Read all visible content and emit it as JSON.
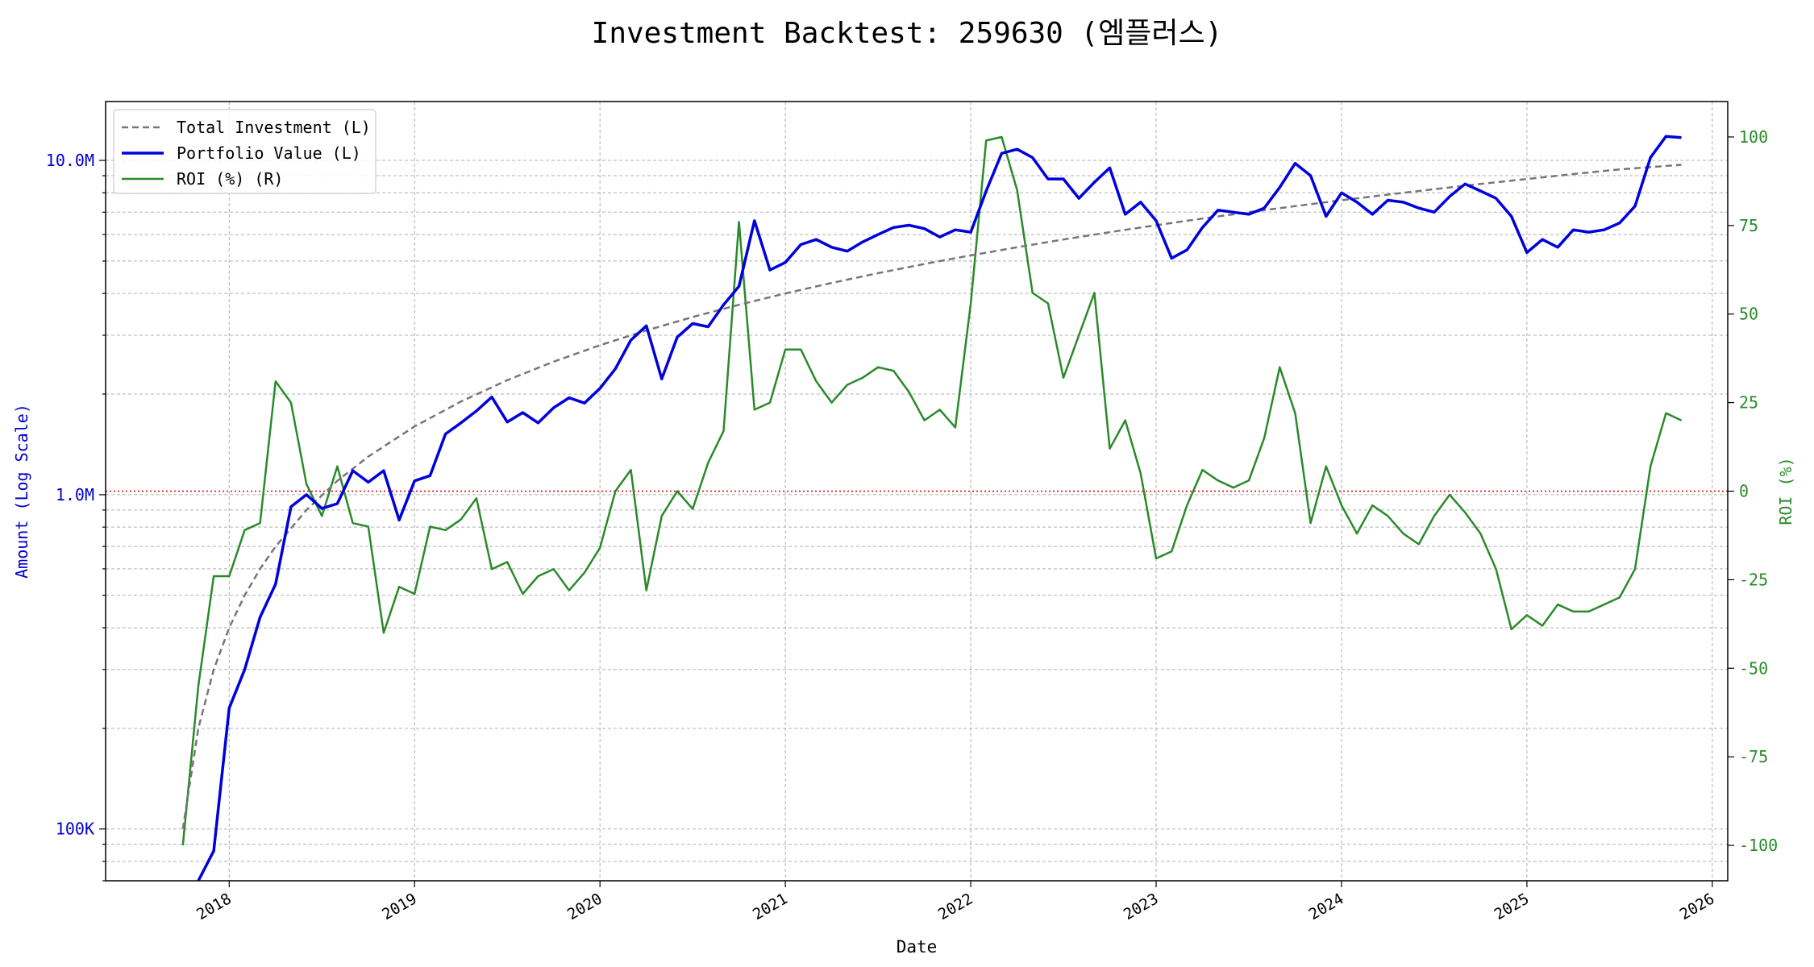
{
  "chart_data": {
    "type": "line",
    "title": "Investment Backtest: 259630 (엠플러스)",
    "xlabel": "Date",
    "ylabel_left": "Amount (Log Scale)",
    "ylabel_right": "ROI (%)",
    "y_left_scale": "log",
    "y_left_range": [
      70000,
      15000000
    ],
    "y_left_ticks": [
      {
        "value": 100000,
        "label": "100K"
      },
      {
        "value": 1000000,
        "label": "1.0M"
      },
      {
        "value": 10000000,
        "label": "10.0M"
      }
    ],
    "y_right_range": [
      -110,
      110
    ],
    "y_right_ticks": [
      -100,
      -75,
      -50,
      -25,
      0,
      25,
      50,
      75,
      100
    ],
    "x_range": [
      "2017-05-01",
      "2026-02-01"
    ],
    "x_ticks": [
      "2018",
      "2019",
      "2020",
      "2021",
      "2022",
      "2023",
      "2024",
      "2025",
      "2026"
    ],
    "grid": true,
    "legend_position": "top-left",
    "zero_line": {
      "axis": "right",
      "value": 0,
      "color": "#e00000",
      "style": "dotted"
    },
    "colors": {
      "total_investment": "#777777",
      "portfolio_value": "#0000dd",
      "roi": "#2a8a2a",
      "left_axis": "#0000cc",
      "right_axis": "#2a8a2a"
    },
    "series": [
      {
        "name": "Total Investment (L)",
        "axis": "left",
        "style": "dashed",
        "x": [
          "2017-10",
          "2017-11",
          "2017-12",
          "2018-01",
          "2018-02",
          "2018-03",
          "2018-04",
          "2018-06",
          "2018-08",
          "2018-10",
          "2019-01",
          "2019-04",
          "2019-07",
          "2019-10",
          "2020-01",
          "2020-04",
          "2020-07",
          "2020-10",
          "2021-01",
          "2021-04",
          "2021-07",
          "2021-10",
          "2022-01",
          "2022-04",
          "2022-07",
          "2022-10",
          "2023-01",
          "2023-04",
          "2023-07",
          "2023-10",
          "2024-01",
          "2024-04",
          "2024-07",
          "2024-10",
          "2025-01",
          "2025-04",
          "2025-07",
          "2025-11"
        ],
        "values": [
          100000,
          200000,
          300000,
          400000,
          500000,
          600000,
          700000,
          900000,
          1100000,
          1300000,
          1600000,
          1900000,
          2200000,
          2500000,
          2800000,
          3100000,
          3400000,
          3700000,
          4000000,
          4300000,
          4600000,
          4900000,
          5200000,
          5500000,
          5800000,
          6100000,
          6400000,
          6700000,
          7000000,
          7300000,
          7600000,
          7900000,
          8200000,
          8500000,
          8800000,
          9100000,
          9400000,
          9700000
        ]
      },
      {
        "name": "Portfolio Value (L)",
        "axis": "left",
        "style": "solid",
        "x": [
          "2017-11",
          "2017-12",
          "2018-01",
          "2018-02",
          "2018-03",
          "2018-04",
          "2018-05",
          "2018-06",
          "2018-07",
          "2018-08",
          "2018-09",
          "2018-10",
          "2018-11",
          "2018-12",
          "2019-01",
          "2019-02",
          "2019-03",
          "2019-04",
          "2019-05",
          "2019-06",
          "2019-07",
          "2019-08",
          "2019-09",
          "2019-10",
          "2019-11",
          "2019-12",
          "2020-01",
          "2020-02",
          "2020-03",
          "2020-04",
          "2020-05",
          "2020-06",
          "2020-07",
          "2020-08",
          "2020-09",
          "2020-10",
          "2020-11",
          "2020-12",
          "2021-01",
          "2021-02",
          "2021-03",
          "2021-04",
          "2021-05",
          "2021-06",
          "2021-07",
          "2021-08",
          "2021-09",
          "2021-10",
          "2021-11",
          "2021-12",
          "2022-01",
          "2022-02",
          "2022-03",
          "2022-04",
          "2022-05",
          "2022-06",
          "2022-07",
          "2022-08",
          "2022-09",
          "2022-10",
          "2022-11",
          "2022-12",
          "2023-01",
          "2023-02",
          "2023-03",
          "2023-04",
          "2023-05",
          "2023-06",
          "2023-07",
          "2023-08",
          "2023-09",
          "2023-10",
          "2023-11",
          "2023-12",
          "2024-01",
          "2024-02",
          "2024-03",
          "2024-04",
          "2024-05",
          "2024-06",
          "2024-07",
          "2024-08",
          "2024-09",
          "2024-10",
          "2024-11",
          "2024-12",
          "2025-01",
          "2025-02",
          "2025-03",
          "2025-04",
          "2025-05",
          "2025-06",
          "2025-07",
          "2025-08",
          "2025-09",
          "2025-10",
          "2025-11"
        ],
        "values": [
          70000,
          86000,
          230000,
          300000,
          430000,
          540000,
          920000,
          1000000,
          910000,
          940000,
          1180000,
          1090000,
          1180000,
          840000,
          1100000,
          1140000,
          1520000,
          1640000,
          1780000,
          1960000,
          1650000,
          1760000,
          1640000,
          1820000,
          1950000,
          1880000,
          2080000,
          2380000,
          2900000,
          3200000,
          2220000,
          2960000,
          3250000,
          3180000,
          3700000,
          4200000,
          6600000,
          4700000,
          4950000,
          5600000,
          5800000,
          5500000,
          5350000,
          5700000,
          6000000,
          6300000,
          6400000,
          6250000,
          5900000,
          6200000,
          6100000,
          8100000,
          10500000,
          10800000,
          10200000,
          8800000,
          8800000,
          7700000,
          8600000,
          9500000,
          6900000,
          7500000,
          6600000,
          5100000,
          5400000,
          6300000,
          7100000,
          7000000,
          6900000,
          7200000,
          8300000,
          9800000,
          9000000,
          6800000,
          8000000,
          7500000,
          6900000,
          7600000,
          7500000,
          7200000,
          7000000,
          7800000,
          8500000,
          8100000,
          7700000,
          6800000,
          5300000,
          5800000,
          5500000,
          6200000,
          6100000,
          6200000,
          6500000,
          7300000,
          10200000,
          11800000,
          11700000
        ]
      },
      {
        "name": "ROI (%) (R)",
        "axis": "right",
        "style": "solid",
        "x": [
          "2017-10",
          "2017-11",
          "2017-12",
          "2018-01",
          "2018-02",
          "2018-03",
          "2018-04",
          "2018-05",
          "2018-06",
          "2018-07",
          "2018-08",
          "2018-09",
          "2018-10",
          "2018-11",
          "2018-12",
          "2019-01",
          "2019-02",
          "2019-03",
          "2019-04",
          "2019-05",
          "2019-06",
          "2019-07",
          "2019-08",
          "2019-09",
          "2019-10",
          "2019-11",
          "2019-12",
          "2020-01",
          "2020-02",
          "2020-03",
          "2020-04",
          "2020-05",
          "2020-06",
          "2020-07",
          "2020-08",
          "2020-09",
          "2020-10",
          "2020-11",
          "2020-12",
          "2021-01",
          "2021-02",
          "2021-03",
          "2021-04",
          "2021-05",
          "2021-06",
          "2021-07",
          "2021-08",
          "2021-09",
          "2021-10",
          "2021-11",
          "2021-12",
          "2022-01",
          "2022-02",
          "2022-03",
          "2022-04",
          "2022-05",
          "2022-06",
          "2022-07",
          "2022-08",
          "2022-09",
          "2022-10",
          "2022-11",
          "2022-12",
          "2023-01",
          "2023-02",
          "2023-03",
          "2023-04",
          "2023-05",
          "2023-06",
          "2023-07",
          "2023-08",
          "2023-09",
          "2023-10",
          "2023-11",
          "2023-12",
          "2024-01",
          "2024-02",
          "2024-03",
          "2024-04",
          "2024-05",
          "2024-06",
          "2024-07",
          "2024-08",
          "2024-09",
          "2024-10",
          "2024-11",
          "2024-12",
          "2025-01",
          "2025-02",
          "2025-03",
          "2025-04",
          "2025-05",
          "2025-06",
          "2025-07",
          "2025-08",
          "2025-09",
          "2025-10",
          "2025-11"
        ],
        "values": [
          -100,
          -55,
          -24,
          -24,
          -11,
          -9,
          31,
          25,
          2,
          -7,
          7,
          -9,
          -10,
          -40,
          -27,
          -29,
          -10,
          -11,
          -8,
          -2,
          -22,
          -20,
          -29,
          -24,
          -22,
          -28,
          -23,
          -16,
          0,
          6,
          -28,
          -7,
          0,
          -5,
          8,
          17,
          76,
          23,
          25,
          40,
          40,
          31,
          25,
          30,
          32,
          35,
          34,
          28,
          20,
          23,
          18,
          53,
          99,
          100,
          85,
          56,
          53,
          32,
          44,
          56,
          12,
          20,
          5,
          -19,
          -17,
          -4,
          6,
          3,
          1,
          3,
          15,
          35,
          22,
          -9,
          7,
          -4,
          -12,
          -4,
          -7,
          -12,
          -15,
          -7,
          -1,
          -6,
          -12,
          -22,
          -39,
          -35,
          -38,
          -32,
          -34,
          -34,
          -32,
          -30,
          -22,
          7,
          22,
          20
        ]
      }
    ]
  }
}
